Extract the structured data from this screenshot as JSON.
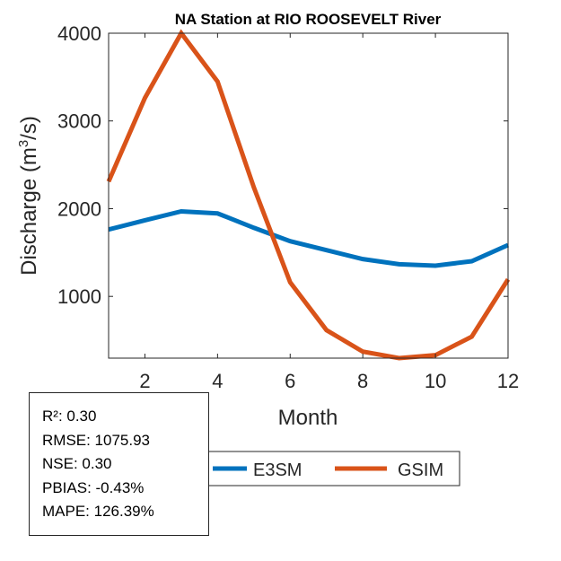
{
  "chart_data": {
    "type": "line",
    "title": "NA  Station at  RIO ROOSEVELT  River",
    "xlabel": "Month",
    "ylabel": "Discharge (m³/s)",
    "ylabel_parts": {
      "pre": "Discharge (m",
      "sup": "3",
      "post": "/s)"
    },
    "xlim": [
      1,
      12
    ],
    "ylim": [
      296,
      4000
    ],
    "xticks": [
      2,
      4,
      6,
      8,
      10,
      12
    ],
    "yticks": [
      1000,
      2000,
      3000,
      4000
    ],
    "grid": false,
    "legend_placement": "bottom-center, outside axes",
    "x": [
      1,
      2,
      3,
      4,
      5,
      6,
      7,
      8,
      9,
      10,
      11,
      12
    ],
    "series": [
      {
        "name": "E3SM",
        "color": "#0072BD",
        "values": [
          1762,
          1867,
          1969,
          1946,
          1782,
          1629,
          1527,
          1425,
          1367,
          1350,
          1401,
          1585
        ]
      },
      {
        "name": "GSIM",
        "color": "#D95319",
        "values": [
          2309,
          3262,
          4000,
          3449,
          2242,
          1160,
          615,
          370,
          296,
          330,
          541,
          1194
        ]
      }
    ]
  },
  "stats": [
    "R²: 0.30",
    "RMSE: 1075.93",
    "NSE: 0.30",
    "PBIAS: -0.43%",
    "MAPE: 126.39%"
  ]
}
